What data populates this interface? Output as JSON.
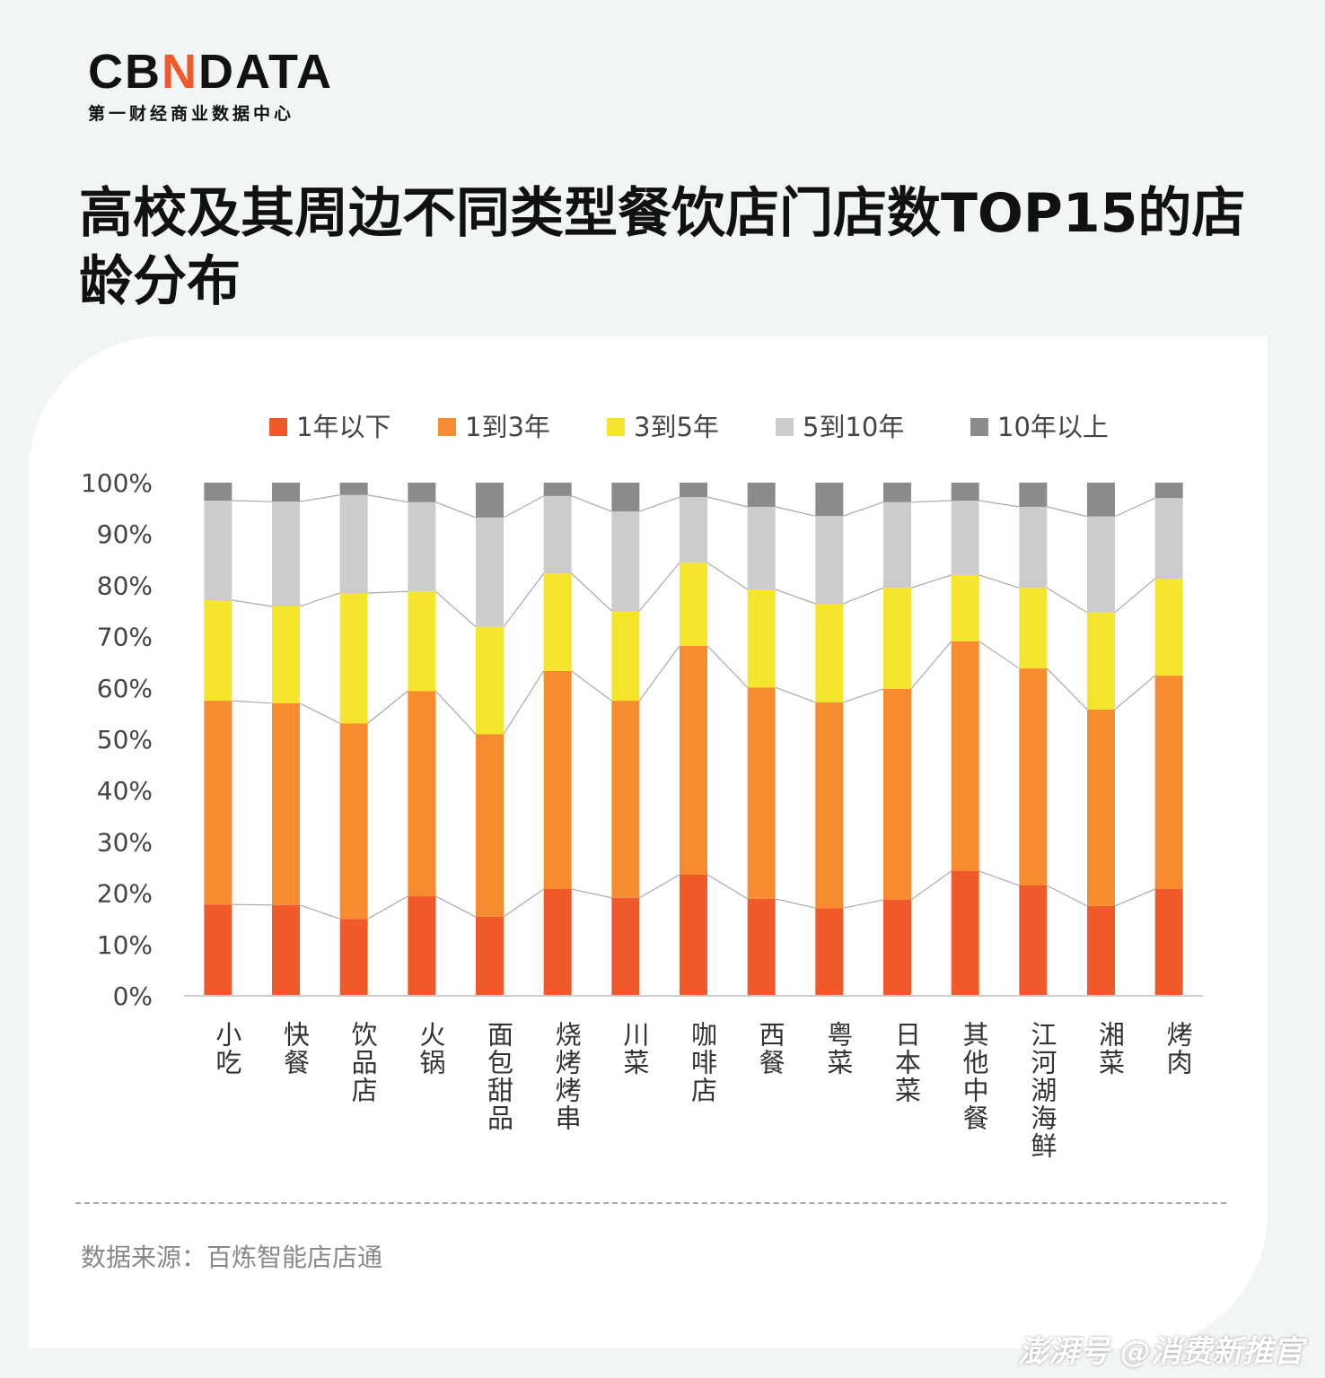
{
  "logo": {
    "brand": "CBNDATA",
    "subtitle": "第一财经商业数据中心"
  },
  "title": "高校及其周边不同类型餐饮店门店数TOP15的店龄分布",
  "source": "数据来源：百炼智能店店通",
  "watermark": "澎湃号 @消费新推官",
  "chart_data": {
    "type": "bar",
    "stacked": true,
    "title": "",
    "xlabel": "",
    "ylabel": "",
    "ylim": [
      0,
      100
    ],
    "yticks": [
      "0%",
      "10%",
      "20%",
      "30%",
      "40%",
      "50%",
      "60%",
      "70%",
      "80%",
      "90%",
      "100%"
    ],
    "legend_position": "top",
    "categories": [
      "小吃",
      "快餐",
      "饮品店",
      "火锅",
      "面包甜品",
      "烧烤烤串",
      "川菜",
      "咖啡店",
      "西餐",
      "粤菜",
      "日本菜",
      "其他中餐",
      "江河湖海鲜",
      "湘菜",
      "烤肉"
    ],
    "series": [
      {
        "name": "1年以下",
        "color": "#f05a2a",
        "values": [
          17.8,
          17.7,
          15.0,
          19.4,
          15.4,
          20.8,
          19.1,
          23.6,
          18.9,
          17.1,
          18.7,
          24.3,
          21.5,
          17.5,
          20.8
        ]
      },
      {
        "name": "1到3年",
        "color": "#f78b2f",
        "values": [
          39.7,
          39.3,
          38.1,
          40.0,
          35.6,
          42.5,
          38.4,
          44.6,
          41.2,
          40.1,
          41.1,
          44.8,
          42.3,
          38.3,
          41.6
        ]
      },
      {
        "name": "3到5年",
        "color": "#f5e52c",
        "values": [
          19.6,
          18.9,
          25.4,
          19.4,
          20.9,
          19.0,
          17.5,
          16.2,
          19.1,
          19.2,
          19.7,
          12.9,
          15.7,
          18.9,
          18.9
        ]
      },
      {
        "name": "5到10年",
        "color": "#cccccc",
        "values": [
          19.4,
          20.4,
          19.1,
          17.4,
          21.3,
          15.1,
          19.4,
          12.8,
          16.1,
          17.1,
          16.7,
          14.5,
          15.8,
          18.7,
          15.7
        ]
      },
      {
        "name": "10年以上",
        "color": "#8a8b8d",
        "values": [
          3.5,
          3.7,
          2.4,
          3.8,
          6.8,
          2.6,
          5.6,
          2.8,
          4.7,
          6.5,
          3.8,
          3.5,
          4.7,
          6.6,
          3.0
        ]
      }
    ]
  }
}
